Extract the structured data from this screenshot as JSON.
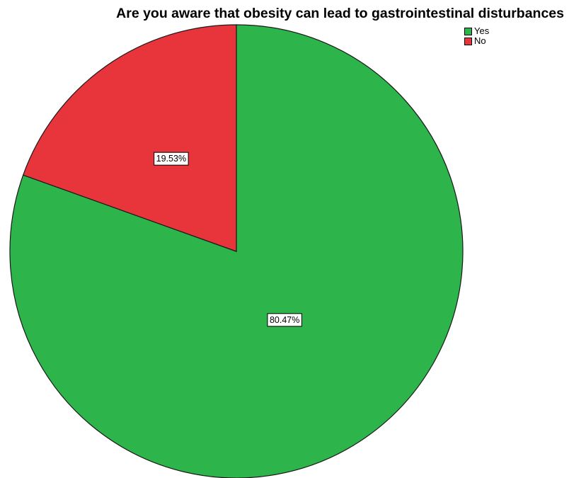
{
  "chart_data": {
    "type": "pie",
    "title": "Are you aware that obesity can lead to gastrointestinal disturbances",
    "legend_position": "top-right",
    "start_angle": "12 o'clock, clockwise",
    "slices": [
      {
        "name": "Yes",
        "value": 80.47,
        "label": "80.47%",
        "color": "#2db44a"
      },
      {
        "name": "No",
        "value": 19.53,
        "label": "19.53%",
        "color": "#e8353b"
      }
    ]
  }
}
